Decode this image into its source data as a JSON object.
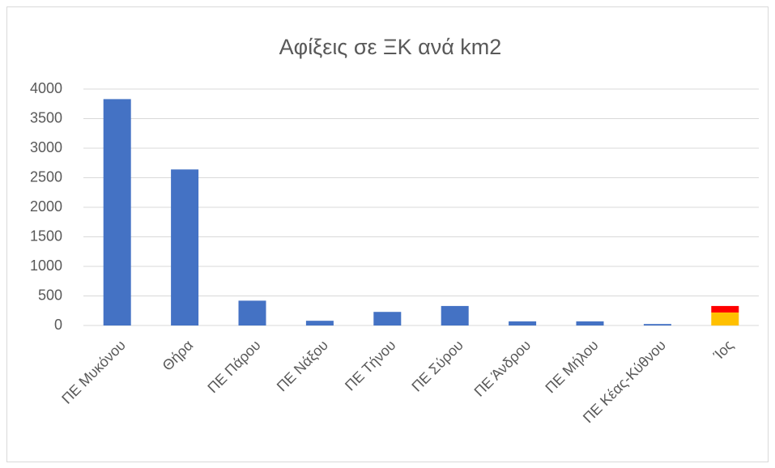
{
  "chart_data": {
    "type": "bar",
    "title": "Αφίξεις σε ΞΚ ανά km2",
    "categories": [
      "ΠΕ Μυκόνου",
      "Θήρα",
      "ΠΕ Πάρου",
      "ΠΕ Νάξου",
      "ΠΕ Τήνου",
      "ΠΕ Σύρου",
      "ΠΕ Άνδρου",
      "ΠΕ Μήλου",
      "ΠΕ Κέας-Κύθνου",
      "Ίος"
    ],
    "series": [
      {
        "color": "#4472c4",
        "values": [
          3830,
          2640,
          420,
          80,
          230,
          330,
          70,
          70,
          25,
          null
        ]
      },
      {
        "color": "#ffc000",
        "values": [
          null,
          null,
          null,
          null,
          null,
          null,
          null,
          null,
          null,
          220
        ]
      },
      {
        "color": "#ff0000",
        "values": [
          null,
          null,
          null,
          null,
          null,
          null,
          null,
          null,
          null,
          110
        ]
      }
    ],
    "stacked": true,
    "ylim": [
      0,
      4000
    ],
    "yticks": [
      0,
      500,
      1000,
      1500,
      2000,
      2500,
      3000,
      3500,
      4000
    ],
    "grid": true
  }
}
